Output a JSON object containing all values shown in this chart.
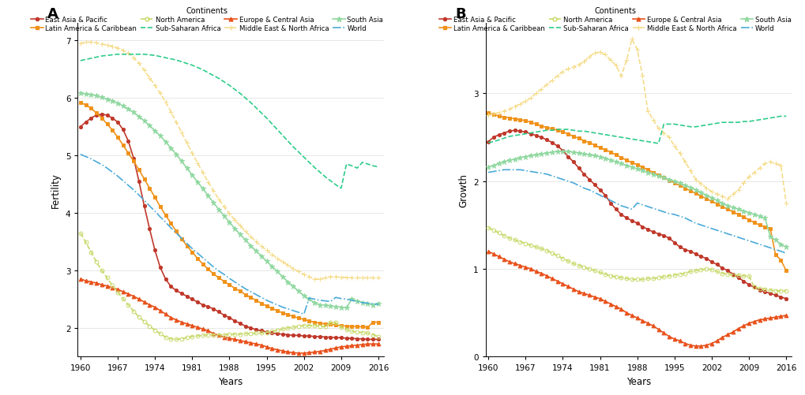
{
  "years": [
    1960,
    1961,
    1962,
    1963,
    1964,
    1965,
    1966,
    1967,
    1968,
    1969,
    1970,
    1971,
    1972,
    1973,
    1974,
    1975,
    1976,
    1977,
    1978,
    1979,
    1980,
    1981,
    1982,
    1983,
    1984,
    1985,
    1986,
    1987,
    1988,
    1989,
    1990,
    1991,
    1992,
    1993,
    1994,
    1995,
    1996,
    1997,
    1998,
    1999,
    2000,
    2001,
    2002,
    2003,
    2004,
    2005,
    2006,
    2007,
    2008,
    2009,
    2010,
    2011,
    2012,
    2013,
    2014,
    2015,
    2016
  ],
  "fertility": {
    "East Asia & Pacific": [
      5.5,
      5.58,
      5.65,
      5.7,
      5.72,
      5.7,
      5.65,
      5.58,
      5.45,
      5.25,
      4.95,
      4.55,
      4.12,
      3.72,
      3.35,
      3.05,
      2.85,
      2.72,
      2.65,
      2.6,
      2.55,
      2.5,
      2.45,
      2.4,
      2.37,
      2.33,
      2.28,
      2.22,
      2.18,
      2.12,
      2.08,
      2.03,
      2.0,
      1.97,
      1.95,
      1.93,
      1.91,
      1.9,
      1.89,
      1.88,
      1.87,
      1.87,
      1.86,
      1.86,
      1.85,
      1.85,
      1.84,
      1.84,
      1.83,
      1.83,
      1.82,
      1.82,
      1.81,
      1.81,
      1.8,
      1.8,
      1.8
    ],
    "Europe & Central Asia": [
      2.85,
      2.82,
      2.8,
      2.78,
      2.75,
      2.73,
      2.7,
      2.67,
      2.63,
      2.59,
      2.55,
      2.5,
      2.45,
      2.4,
      2.36,
      2.3,
      2.24,
      2.18,
      2.14,
      2.1,
      2.07,
      2.04,
      2.01,
      1.98,
      1.95,
      1.9,
      1.87,
      1.84,
      1.82,
      1.8,
      1.78,
      1.76,
      1.74,
      1.72,
      1.7,
      1.67,
      1.64,
      1.62,
      1.6,
      1.58,
      1.57,
      1.56,
      1.56,
      1.57,
      1.58,
      1.59,
      1.61,
      1.63,
      1.65,
      1.67,
      1.68,
      1.69,
      1.7,
      1.71,
      1.72,
      1.72,
      1.72
    ],
    "Latin America & Caribbean": [
      5.92,
      5.88,
      5.82,
      5.74,
      5.65,
      5.55,
      5.44,
      5.32,
      5.18,
      5.04,
      4.9,
      4.75,
      4.59,
      4.43,
      4.27,
      4.11,
      3.96,
      3.82,
      3.68,
      3.55,
      3.43,
      3.32,
      3.21,
      3.11,
      3.02,
      2.94,
      2.87,
      2.81,
      2.75,
      2.69,
      2.64,
      2.58,
      2.53,
      2.48,
      2.43,
      2.38,
      2.34,
      2.3,
      2.26,
      2.23,
      2.2,
      2.17,
      2.15,
      2.12,
      2.1,
      2.08,
      2.07,
      2.06,
      2.05,
      2.04,
      2.03,
      2.03,
      2.02,
      2.02,
      2.01,
      2.1,
      2.1
    ],
    "Middle East & North Africa": [
      6.95,
      6.97,
      6.97,
      6.96,
      6.94,
      6.92,
      6.9,
      6.87,
      6.83,
      6.78,
      6.7,
      6.6,
      6.48,
      6.35,
      6.22,
      6.08,
      5.93,
      5.76,
      5.58,
      5.4,
      5.22,
      5.04,
      4.87,
      4.7,
      4.54,
      4.38,
      4.24,
      4.11,
      3.99,
      3.88,
      3.78,
      3.68,
      3.59,
      3.5,
      3.42,
      3.35,
      3.28,
      3.21,
      3.15,
      3.09,
      3.03,
      2.98,
      2.93,
      2.89,
      2.85,
      2.85,
      2.87,
      2.89,
      2.89,
      2.88,
      2.88,
      2.87,
      2.87,
      2.87,
      2.87,
      2.87,
      2.87
    ],
    "North America": [
      3.65,
      3.49,
      3.32,
      3.15,
      3.0,
      2.87,
      2.74,
      2.62,
      2.51,
      2.4,
      2.29,
      2.19,
      2.11,
      2.03,
      1.96,
      1.9,
      1.84,
      1.81,
      1.8,
      1.81,
      1.83,
      1.85,
      1.86,
      1.87,
      1.88,
      1.88,
      1.88,
      1.88,
      1.89,
      1.89,
      1.89,
      1.9,
      1.9,
      1.91,
      1.91,
      1.92,
      1.94,
      1.96,
      1.98,
      2.0,
      2.01,
      2.03,
      2.04,
      2.04,
      2.04,
      2.03,
      2.02,
      2.1,
      2.09,
      2.01,
      1.97,
      1.94,
      1.93,
      1.92,
      1.91,
      1.88,
      1.85
    ],
    "South Asia": [
      6.08,
      6.07,
      6.06,
      6.04,
      6.01,
      5.98,
      5.95,
      5.91,
      5.86,
      5.81,
      5.75,
      5.68,
      5.6,
      5.52,
      5.43,
      5.34,
      5.24,
      5.13,
      5.02,
      4.9,
      4.78,
      4.66,
      4.54,
      4.42,
      4.3,
      4.18,
      4.06,
      3.95,
      3.84,
      3.73,
      3.63,
      3.53,
      3.43,
      3.34,
      3.25,
      3.16,
      3.07,
      2.98,
      2.89,
      2.8,
      2.72,
      2.64,
      2.56,
      2.5,
      2.44,
      2.4,
      2.4,
      2.38,
      2.37,
      2.36,
      2.35,
      2.5,
      2.47,
      2.44,
      2.42,
      2.4,
      2.42
    ],
    "Sub-Saharan Africa": [
      6.65,
      6.67,
      6.69,
      6.71,
      6.73,
      6.74,
      6.75,
      6.76,
      6.76,
      6.76,
      6.76,
      6.76,
      6.76,
      6.75,
      6.74,
      6.72,
      6.7,
      6.68,
      6.66,
      6.63,
      6.6,
      6.57,
      6.53,
      6.49,
      6.44,
      6.39,
      6.34,
      6.28,
      6.22,
      6.15,
      6.08,
      6.0,
      5.92,
      5.83,
      5.74,
      5.65,
      5.55,
      5.45,
      5.35,
      5.25,
      5.15,
      5.06,
      4.97,
      4.88,
      4.79,
      4.71,
      4.63,
      4.56,
      4.49,
      4.43,
      4.85,
      4.82,
      4.78,
      4.88,
      4.85,
      4.82,
      4.8
    ],
    "World": [
      5.02,
      4.98,
      4.94,
      4.89,
      4.84,
      4.78,
      4.71,
      4.64,
      4.56,
      4.48,
      4.4,
      4.31,
      4.22,
      4.12,
      4.03,
      3.93,
      3.84,
      3.74,
      3.65,
      3.56,
      3.47,
      3.38,
      3.3,
      3.22,
      3.14,
      3.06,
      2.99,
      2.93,
      2.86,
      2.8,
      2.74,
      2.68,
      2.63,
      2.58,
      2.53,
      2.48,
      2.44,
      2.4,
      2.36,
      2.33,
      2.3,
      2.27,
      2.24,
      2.52,
      2.5,
      2.48,
      2.47,
      2.46,
      2.53,
      2.51,
      2.5,
      2.48,
      2.46,
      2.44,
      2.43,
      2.42,
      2.41
    ]
  },
  "growth": {
    "East Asia & Pacific": [
      2.45,
      2.5,
      2.53,
      2.55,
      2.57,
      2.58,
      2.57,
      2.56,
      2.54,
      2.52,
      2.5,
      2.47,
      2.44,
      2.4,
      2.35,
      2.28,
      2.22,
      2.15,
      2.08,
      2.02,
      1.96,
      1.9,
      1.84,
      1.75,
      1.68,
      1.62,
      1.58,
      1.55,
      1.52,
      1.48,
      1.45,
      1.42,
      1.4,
      1.38,
      1.35,
      1.3,
      1.25,
      1.22,
      1.2,
      1.17,
      1.14,
      1.12,
      1.08,
      1.05,
      1.01,
      0.98,
      0.94,
      0.9,
      0.86,
      0.82,
      0.79,
      0.76,
      0.74,
      0.72,
      0.7,
      0.68,
      0.66
    ],
    "Europe & Central Asia": [
      1.2,
      1.17,
      1.14,
      1.11,
      1.08,
      1.06,
      1.04,
      1.02,
      1.0,
      0.97,
      0.95,
      0.92,
      0.89,
      0.86,
      0.83,
      0.8,
      0.77,
      0.74,
      0.72,
      0.7,
      0.68,
      0.66,
      0.63,
      0.6,
      0.57,
      0.54,
      0.5,
      0.47,
      0.44,
      0.41,
      0.38,
      0.35,
      0.31,
      0.27,
      0.23,
      0.2,
      0.18,
      0.15,
      0.13,
      0.12,
      0.12,
      0.13,
      0.15,
      0.18,
      0.22,
      0.25,
      0.28,
      0.32,
      0.35,
      0.38,
      0.4,
      0.42,
      0.43,
      0.44,
      0.45,
      0.46,
      0.47
    ],
    "Latin America & Caribbean": [
      2.78,
      2.76,
      2.74,
      2.73,
      2.72,
      2.71,
      2.7,
      2.69,
      2.67,
      2.65,
      2.63,
      2.61,
      2.6,
      2.58,
      2.56,
      2.54,
      2.51,
      2.49,
      2.46,
      2.44,
      2.41,
      2.38,
      2.36,
      2.33,
      2.3,
      2.27,
      2.24,
      2.21,
      2.19,
      2.16,
      2.13,
      2.1,
      2.07,
      2.04,
      2.01,
      1.98,
      1.95,
      1.92,
      1.89,
      1.86,
      1.83,
      1.8,
      1.77,
      1.74,
      1.71,
      1.68,
      1.65,
      1.62,
      1.59,
      1.56,
      1.53,
      1.5,
      1.48,
      1.46,
      1.16,
      1.1,
      0.98
    ],
    "Middle East & North Africa": [
      2.75,
      2.77,
      2.78,
      2.8,
      2.82,
      2.85,
      2.88,
      2.91,
      2.95,
      3.0,
      3.05,
      3.1,
      3.15,
      3.2,
      3.25,
      3.28,
      3.3,
      3.33,
      3.36,
      3.42,
      3.46,
      3.47,
      3.44,
      3.38,
      3.32,
      3.2,
      3.38,
      3.62,
      3.5,
      3.2,
      2.8,
      2.7,
      2.6,
      2.55,
      2.5,
      2.4,
      2.32,
      2.22,
      2.12,
      2.02,
      1.97,
      1.92,
      1.88,
      1.85,
      1.83,
      1.8,
      1.85,
      1.9,
      1.98,
      2.05,
      2.1,
      2.15,
      2.2,
      2.22,
      2.2,
      2.18,
      1.75
    ],
    "North America": [
      1.47,
      1.44,
      1.41,
      1.38,
      1.35,
      1.33,
      1.31,
      1.29,
      1.27,
      1.25,
      1.23,
      1.21,
      1.18,
      1.15,
      1.12,
      1.09,
      1.06,
      1.04,
      1.02,
      1.0,
      0.98,
      0.96,
      0.94,
      0.92,
      0.91,
      0.9,
      0.89,
      0.88,
      0.88,
      0.88,
      0.89,
      0.89,
      0.9,
      0.91,
      0.92,
      0.93,
      0.94,
      0.95,
      0.97,
      0.98,
      0.99,
      1.0,
      0.99,
      0.97,
      0.95,
      0.94,
      0.93,
      0.93,
      0.92,
      0.92,
      0.79,
      0.78,
      0.77,
      0.76,
      0.75,
      0.75,
      0.75
    ],
    "South Asia": [
      2.16,
      2.18,
      2.2,
      2.22,
      2.24,
      2.25,
      2.27,
      2.28,
      2.29,
      2.3,
      2.31,
      2.32,
      2.33,
      2.34,
      2.34,
      2.34,
      2.33,
      2.32,
      2.31,
      2.3,
      2.29,
      2.28,
      2.26,
      2.24,
      2.22,
      2.2,
      2.18,
      2.16,
      2.14,
      2.12,
      2.1,
      2.08,
      2.06,
      2.04,
      2.02,
      2.0,
      1.98,
      1.95,
      1.93,
      1.9,
      1.87,
      1.84,
      1.81,
      1.78,
      1.75,
      1.72,
      1.7,
      1.68,
      1.66,
      1.64,
      1.62,
      1.6,
      1.58,
      1.37,
      1.33,
      1.28,
      1.25
    ],
    "Sub-Saharan Africa": [
      2.44,
      2.45,
      2.47,
      2.49,
      2.51,
      2.52,
      2.53,
      2.54,
      2.55,
      2.56,
      2.57,
      2.58,
      2.58,
      2.59,
      2.59,
      2.59,
      2.58,
      2.57,
      2.57,
      2.56,
      2.55,
      2.54,
      2.53,
      2.52,
      2.51,
      2.5,
      2.49,
      2.48,
      2.47,
      2.46,
      2.45,
      2.44,
      2.43,
      2.65,
      2.65,
      2.65,
      2.64,
      2.63,
      2.62,
      2.62,
      2.63,
      2.64,
      2.65,
      2.66,
      2.67,
      2.67,
      2.67,
      2.67,
      2.68,
      2.68,
      2.69,
      2.7,
      2.71,
      2.72,
      2.73,
      2.74,
      2.74
    ],
    "World": [
      2.1,
      2.11,
      2.12,
      2.13,
      2.13,
      2.13,
      2.13,
      2.12,
      2.11,
      2.1,
      2.09,
      2.08,
      2.06,
      2.04,
      2.02,
      2.0,
      1.98,
      1.95,
      1.92,
      1.9,
      1.87,
      1.84,
      1.81,
      1.78,
      1.75,
      1.72,
      1.7,
      1.68,
      1.75,
      1.73,
      1.71,
      1.69,
      1.67,
      1.65,
      1.63,
      1.62,
      1.6,
      1.58,
      1.55,
      1.52,
      1.5,
      1.48,
      1.46,
      1.44,
      1.42,
      1.4,
      1.38,
      1.36,
      1.34,
      1.32,
      1.3,
      1.28,
      1.26,
      1.24,
      1.22,
      1.2,
      1.18
    ]
  },
  "series_styles": {
    "East Asia & Pacific": {
      "color": "#C0392B",
      "linestyle": "-",
      "marker": "o",
      "markersize": 3.0,
      "markerfacecolor": "#C0392B"
    },
    "Europe & Central Asia": {
      "color": "#E8501A",
      "linestyle": "-",
      "marker": "^",
      "markersize": 3.5,
      "markerfacecolor": "#E8501A"
    },
    "Latin America & Caribbean": {
      "color": "#F0921A",
      "linestyle": "-",
      "marker": "s",
      "markersize": 3.5,
      "markerfacecolor": "#F0921A"
    },
    "Middle East & North Africa": {
      "color": "#F5DC8A",
      "linestyle": "--",
      "marker": "+",
      "markersize": 5.0,
      "markerfacecolor": "#F5DC8A"
    },
    "North America": {
      "color": "#C8D96A",
      "linestyle": "--",
      "marker": "o",
      "markersize": 3.5,
      "markerfacecolor": "none"
    },
    "South Asia": {
      "color": "#90D8A0",
      "linestyle": "-",
      "marker": "*",
      "markersize": 5.0,
      "markerfacecolor": "#90D8A0"
    },
    "Sub-Saharan Africa": {
      "color": "#2ECC8A",
      "linestyle": "--",
      "marker": "None",
      "markersize": 0,
      "markerfacecolor": "#2ECC8A"
    },
    "World": {
      "color": "#4AAAD8",
      "linestyle": "-.",
      "marker": "None",
      "markersize": 0,
      "markerfacecolor": "#4AAAD8"
    }
  },
  "legend_order": [
    "East Asia & Pacific",
    "Latin America & Caribbean",
    "North America",
    "Sub-Saharan Africa",
    "Europe & Central Asia",
    "Middle East & North Africa",
    "South Asia",
    "World"
  ],
  "panel_A": {
    "ylabel": "Fertility",
    "xlabel": "Years",
    "ylim": [
      1.5,
      7.3
    ],
    "yticks": [
      2,
      3,
      4,
      5,
      6,
      7
    ],
    "xticks": [
      1960,
      1967,
      1974,
      1981,
      1988,
      1995,
      2002,
      2009,
      2016
    ]
  },
  "panel_B": {
    "ylabel": "Growth",
    "xlabel": "Years",
    "ylim": [
      0,
      3.8
    ],
    "yticks": [
      0,
      1,
      2,
      3
    ],
    "xticks": [
      1960,
      1967,
      1974,
      1981,
      1988,
      1995,
      2002,
      2009,
      2016
    ]
  },
  "background_color": "#FFFFFF",
  "grid_color": "#DDDDDD"
}
